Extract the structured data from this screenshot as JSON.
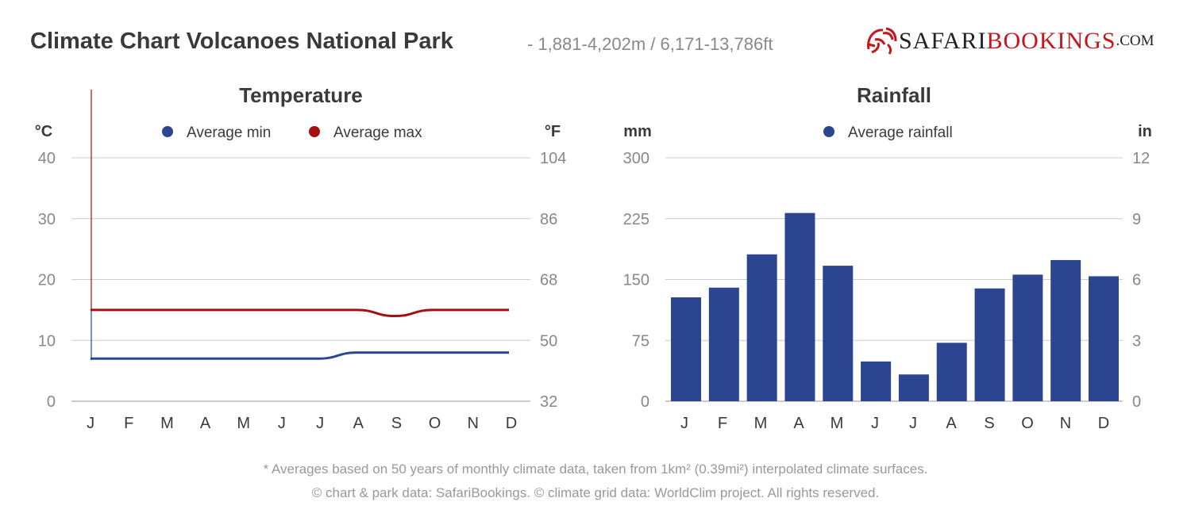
{
  "header": {
    "title": "Climate Chart Volcanoes National Park",
    "subtitle": "- 1,881-4,202m / 6,171-13,786ft",
    "logo": {
      "part1": "SAFARI",
      "part2": "BOOKINGS",
      ".com": ".COM"
    }
  },
  "footer": {
    "note": "* Averages based on 50 years of monthly climate data, taken from 1km² (0.39mi²) interpolated climate surfaces.",
    "credits": "© chart & park data: SafariBookings. © climate grid data: WorldClim project. All rights reserved."
  },
  "chart_data": [
    {
      "type": "line",
      "title": "Temperature",
      "ylabel": "°C",
      "y2label": "°F",
      "categories": [
        "J",
        "F",
        "M",
        "A",
        "M",
        "J",
        "J",
        "A",
        "S",
        "O",
        "N",
        "D"
      ],
      "ylim": [
        0,
        40
      ],
      "yticks": [
        0,
        10,
        20,
        30,
        40
      ],
      "y2ticks": [
        32,
        50,
        68,
        86,
        104
      ],
      "legend": "top",
      "grid": true,
      "series": [
        {
          "name": "Average min",
          "color": "#2b4590",
          "values": [
            7,
            7,
            7,
            7,
            7,
            7,
            7,
            8,
            8,
            8,
            8,
            8
          ]
        },
        {
          "name": "Average max",
          "color": "#a50f0f",
          "values": [
            15,
            15,
            15,
            15,
            15,
            15,
            15,
            15,
            14,
            15,
            15,
            15
          ]
        }
      ]
    },
    {
      "type": "bar",
      "title": "Rainfall",
      "ylabel": "mm",
      "y2label": "in",
      "categories": [
        "J",
        "F",
        "M",
        "A",
        "M",
        "J",
        "J",
        "A",
        "S",
        "O",
        "N",
        "D"
      ],
      "ylim": [
        0,
        300
      ],
      "yticks": [
        0,
        75,
        150,
        225,
        300
      ],
      "y2ticks": [
        0,
        3,
        6,
        9,
        12
      ],
      "legend": "top",
      "grid": true,
      "series": [
        {
          "name": "Average rainfall",
          "color": "#2b4590",
          "values": [
            128,
            140,
            181,
            232,
            167,
            49,
            33,
            72,
            139,
            156,
            174,
            154
          ]
        }
      ]
    }
  ]
}
